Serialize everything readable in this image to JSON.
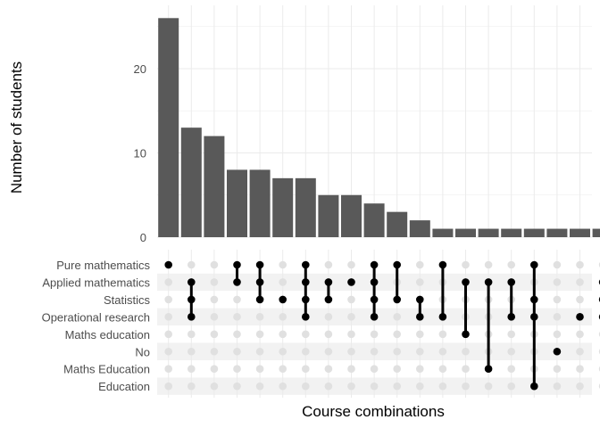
{
  "chart_data": {
    "type": "upset",
    "ylabel": "Number of students",
    "xlabel": "Course combinations",
    "ylim": [
      0,
      27
    ],
    "yticks": [
      0,
      10,
      20
    ],
    "grid": true,
    "sets": [
      "Pure mathematics",
      "Applied mathematics",
      "Statistics",
      "Operational research",
      "Maths education",
      "No",
      "Maths Education",
      "Education"
    ],
    "intersections": [
      {
        "count": 26,
        "members": [
          "Pure mathematics"
        ]
      },
      {
        "count": 13,
        "members": [
          "Applied mathematics",
          "Statistics",
          "Operational research"
        ]
      },
      {
        "count": 12,
        "members": []
      },
      {
        "count": 8,
        "members": [
          "Pure mathematics",
          "Applied mathematics"
        ]
      },
      {
        "count": 8,
        "members": [
          "Pure mathematics",
          "Applied mathematics",
          "Statistics"
        ]
      },
      {
        "count": 7,
        "members": [
          "Statistics"
        ]
      },
      {
        "count": 7,
        "members": [
          "Pure mathematics",
          "Applied mathematics",
          "Statistics",
          "Operational research"
        ]
      },
      {
        "count": 5,
        "members": [
          "Applied mathematics",
          "Statistics"
        ]
      },
      {
        "count": 5,
        "members": [
          "Applied mathematics"
        ]
      },
      {
        "count": 4,
        "members": [
          "Pure mathematics",
          "Applied mathematics",
          "Statistics",
          "Operational research"
        ]
      },
      {
        "count": 3,
        "members": [
          "Pure mathematics",
          "Statistics"
        ]
      },
      {
        "count": 2,
        "members": [
          "Statistics",
          "Operational research"
        ]
      },
      {
        "count": 1,
        "members": [
          "Pure mathematics",
          "Operational research"
        ]
      },
      {
        "count": 1,
        "members": [
          "Applied mathematics",
          "Maths education"
        ]
      },
      {
        "count": 1,
        "members": [
          "Applied mathematics",
          "Maths Education"
        ]
      },
      {
        "count": 1,
        "members": [
          "Applied mathematics",
          "Operational research"
        ]
      },
      {
        "count": 1,
        "members": [
          "Pure mathematics",
          "Statistics",
          "Operational research",
          "Education"
        ]
      },
      {
        "count": 1,
        "members": [
          "No"
        ]
      },
      {
        "count": 1,
        "members": [
          "Operational research"
        ]
      },
      {
        "count": 1,
        "members": [
          "Applied mathematics",
          "Statistics",
          "Operational research"
        ]
      }
    ]
  },
  "colors": {
    "bar": "#595959",
    "dot_active": "#000000",
    "dot_inactive": "#e0e0e0",
    "stripe": "#f2f2f2",
    "grid": "#ebebeb",
    "tick_text": "#4d4d4d"
  }
}
